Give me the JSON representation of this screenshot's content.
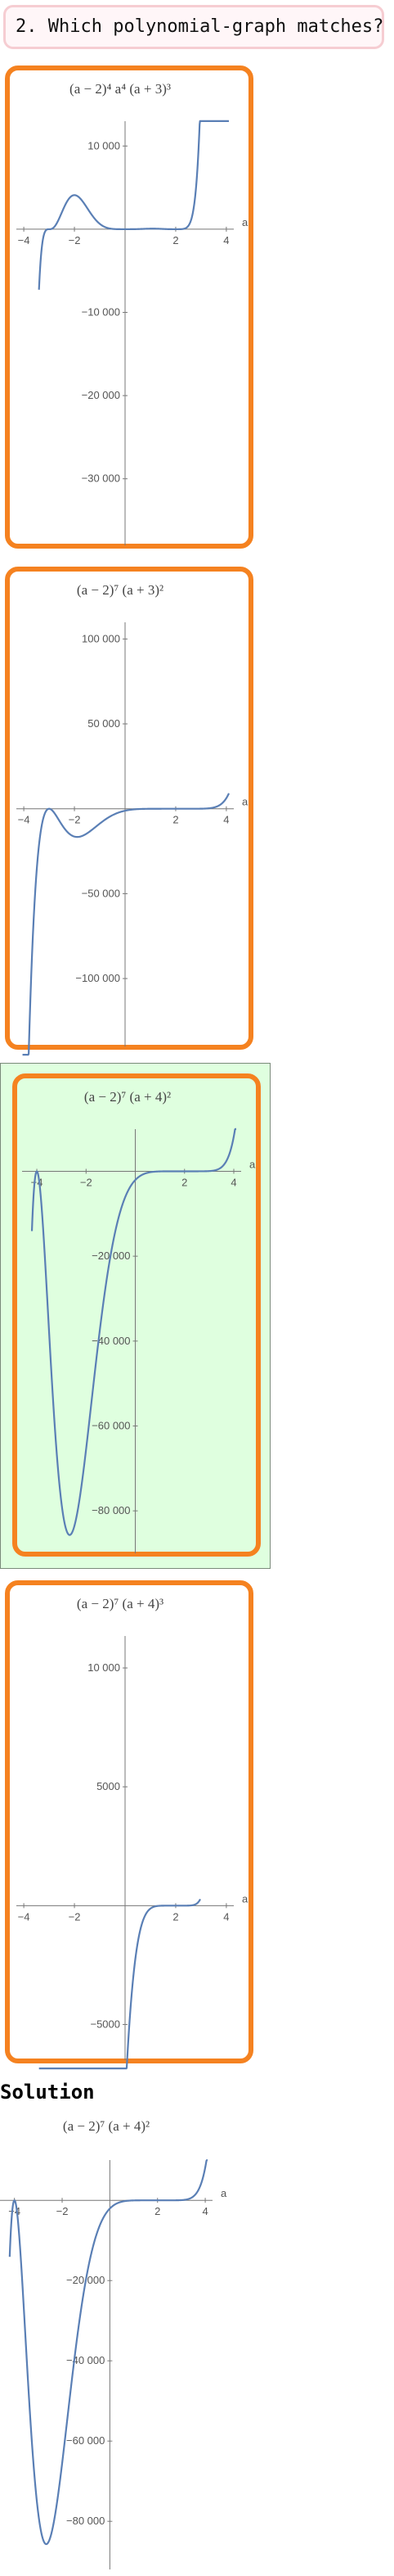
{
  "question": {
    "text": "2. Which polynomial-graph matches?"
  },
  "solution": {
    "heading": "Solution"
  },
  "options": [
    {
      "title_text": "(a − 2)⁴ a⁴ (a + 3)³",
      "correct": false
    },
    {
      "title_text": "(a − 2)⁷ (a + 3)²",
      "correct": false
    },
    {
      "title_text": "(a − 2)⁷ (a + 4)²",
      "correct": true
    },
    {
      "title_text": "(a − 2)⁷ (a + 4)³",
      "correct": false
    }
  ],
  "chart_data": [
    {
      "type": "line",
      "title": "(a − 2)⁴ a⁴ (a + 3)³",
      "xlabel": "a",
      "ylabel": "",
      "xlim": [
        -4.1,
        4.1
      ],
      "ylim": [
        -38000,
        12000
      ],
      "x_ticks": [
        -4,
        -2,
        2,
        4
      ],
      "y_ticks": [
        10000,
        -10000,
        -20000,
        -30000
      ],
      "x_tick_labels": [
        "−4",
        "−2",
        "2",
        "4"
      ],
      "y_tick_labels": [
        "10 000",
        "−10 000",
        "−20 000",
        "−30 000"
      ],
      "x_domain": [
        -3.4,
        4.1
      ],
      "series": [
        {
          "expression": "(a-2)^4 * a^4 * (a+3)^3"
        }
      ],
      "grid": false,
      "color": "#5a7fb5"
    },
    {
      "type": "line",
      "title": "(a − 2)⁷ (a + 3)²",
      "xlabel": "a",
      "ylabel": "",
      "xlim": [
        -4.1,
        4.1
      ],
      "ylim": [
        -140000,
        105000
      ],
      "x_ticks": [
        -4,
        -2,
        2,
        4
      ],
      "y_ticks": [
        100000,
        50000,
        -50000,
        -100000
      ],
      "x_tick_labels": [
        "−4",
        "−2",
        "2",
        "4"
      ],
      "y_tick_labels": [
        "100 000",
        "50 000",
        "−50 000",
        "−100 000"
      ],
      "x_domain": [
        -4.05,
        4.1
      ],
      "series": [
        {
          "expression": "(a-2)^7 * (a+3)^2"
        }
      ],
      "grid": false,
      "color": "#5a7fb5"
    },
    {
      "type": "line",
      "title": "(a − 2)⁷ (a + 4)²",
      "xlabel": "a",
      "ylabel": "",
      "xlim": [
        -4.4,
        4.1
      ],
      "ylim": [
        -90000,
        8000
      ],
      "x_ticks": [
        -4,
        -2,
        2,
        4
      ],
      "y_ticks": [
        -20000,
        -40000,
        -60000,
        -80000
      ],
      "x_tick_labels": [
        "−4",
        "−2",
        "2",
        "4"
      ],
      "y_tick_labels": [
        "−20 000",
        "−40 000",
        "−60 000",
        "−80 000"
      ],
      "x_domain": [
        -4.2,
        4.1
      ],
      "series": [
        {
          "expression": "(a-2)^7 * (a+4)^2"
        }
      ],
      "grid": false,
      "color": "#5a7fb5"
    },
    {
      "type": "line",
      "title": "(a − 2)⁷ (a + 4)³",
      "xlabel": "a",
      "ylabel": "",
      "xlim": [
        -4.1,
        4.1
      ],
      "ylim": [
        -6500,
        11000
      ],
      "x_ticks": [
        -4,
        -2,
        2,
        4
      ],
      "y_ticks": [
        10000,
        5000,
        -5000
      ],
      "x_tick_labels": [
        "−4",
        "−2",
        "2",
        "4"
      ],
      "y_tick_labels": [
        "10 000",
        "5000",
        "−5000"
      ],
      "x_domain": [
        -3.4,
        2.97
      ],
      "series": [
        {
          "expression": "(a-2)^7 * (a+4)^3"
        }
      ],
      "grid": false,
      "color": "#5a7fb5"
    },
    {
      "type": "line",
      "title": "(a − 2)⁷ (a + 4)²",
      "xlabel": "a",
      "ylabel": "",
      "xlim": [
        -4.4,
        4.1
      ],
      "ylim": [
        -92000,
        8000
      ],
      "x_ticks": [
        -4,
        -2,
        2,
        4
      ],
      "y_ticks": [
        -20000,
        -40000,
        -60000,
        -80000
      ],
      "x_tick_labels": [
        "−4",
        "−2",
        "2",
        "4"
      ],
      "y_tick_labels": [
        "−20 000",
        "−40 000",
        "−60 000",
        "−80 000"
      ],
      "x_domain": [
        -4.2,
        4.1
      ],
      "series": [
        {
          "expression": "(a-2)^7 * (a+4)^2"
        }
      ],
      "grid": false,
      "color": "#5a7fb5"
    }
  ]
}
